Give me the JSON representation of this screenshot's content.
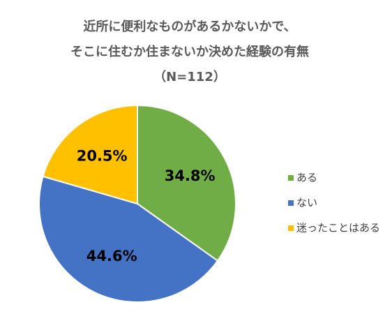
{
  "chart_data": {
    "type": "pie",
    "title": [
      "近所に便利なものがあるかないかで、",
      "そこに住むか住まないか決めた経験の有無",
      "（N=112）"
    ],
    "categories": [
      "ある",
      "ない",
      "迷ったことはある"
    ],
    "values": [
      34.8,
      44.6,
      20.5
    ],
    "value_labels": [
      "34.8%",
      "44.6%",
      "20.5%"
    ],
    "colors": [
      "#70ad47",
      "#4472c4",
      "#ffc000"
    ],
    "legend": "right"
  }
}
